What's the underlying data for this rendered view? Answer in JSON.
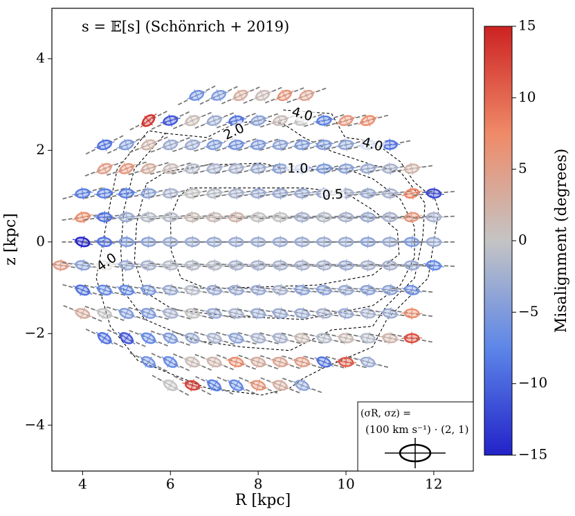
{
  "chart_data": {
    "type": "ellipse_field",
    "title": "s = 𝔼[s] (Schönrich + 2019)",
    "xlabel": "R [kpc]",
    "ylabel": "z [kpc]",
    "xlim": [
      3.3,
      12.9
    ],
    "ylim": [
      -5,
      5.1
    ],
    "xticks": [
      4,
      6,
      8,
      10,
      12
    ],
    "yticks": [
      {
        "value": -4,
        "label": "−4"
      },
      {
        "value": -2,
        "label": "−2"
      },
      0,
      2,
      4
    ],
    "rows": [
      {
        "z": 3.2,
        "R": [
          6.6,
          7.1,
          7.6,
          8.1,
          8.6,
          9.1
        ],
        "misalignment": [
          -6,
          -5,
          3,
          1,
          6,
          4
        ]
      },
      {
        "z": 2.65,
        "R": [
          5.5,
          6.0,
          6.5,
          7.0,
          7.5,
          8.0,
          8.5,
          9.0,
          9.5,
          10.0,
          10.5
        ],
        "misalignment": [
          14,
          -11,
          1,
          -3,
          -9,
          -4,
          1,
          0,
          -8,
          6,
          7
        ]
      },
      {
        "z": 2.12,
        "R": [
          4.5,
          5.0,
          5.5,
          6.0,
          6.5,
          7.0,
          7.5,
          8.0,
          8.5,
          9.0,
          9.5,
          10.0,
          10.5,
          11.0
        ],
        "misalignment": [
          -9,
          -5,
          2,
          -3,
          -3,
          -5,
          -6,
          -5,
          -4,
          -5,
          -5,
          -4,
          -5,
          -9
        ]
      },
      {
        "z": 1.6,
        "R": [
          4.5,
          5.0,
          5.5,
          6.0,
          6.5,
          7.0,
          7.5,
          8.0,
          8.5,
          9.0,
          9.5,
          10.0,
          10.5,
          11.0,
          11.5
        ],
        "misalignment": [
          5,
          6,
          3,
          1,
          -1,
          -2,
          -2,
          -3,
          -4,
          -6,
          -5,
          -4,
          -3,
          -2,
          2
        ]
      },
      {
        "z": 1.06,
        "R": [
          4.0,
          4.5,
          5.0,
          5.5,
          6.0,
          6.5,
          7.0,
          7.5,
          8.0,
          8.5,
          9.0,
          9.5,
          10.0,
          10.5,
          11.0,
          11.5,
          12.0
        ],
        "misalignment": [
          -8,
          -8,
          -8,
          -4,
          -2,
          0,
          -1,
          -2,
          -3,
          -3,
          -3,
          -3,
          -2,
          -3,
          -2,
          8,
          -12
        ]
      },
      {
        "z": 0.54,
        "R": [
          4.0,
          4.5,
          5.0,
          5.5,
          6.0,
          6.5,
          7.0,
          7.5,
          8.0,
          8.5,
          9.0,
          9.5,
          10.0,
          10.5,
          11.0,
          11.5,
          12.0
        ],
        "misalignment": [
          7,
          -9,
          -3,
          -1,
          -1,
          1,
          1,
          2,
          0,
          0,
          -2,
          -1,
          -2,
          -3,
          -2,
          6,
          -2
        ]
      },
      {
        "z": 0,
        "R": [
          4.0,
          4.5,
          5.0,
          5.5,
          6.0,
          6.5,
          7.0,
          7.5,
          8.0,
          8.5,
          9.0,
          9.5,
          10.0,
          10.5,
          11.0,
          11.5,
          12.0
        ],
        "misalignment": [
          -15,
          -9,
          -5,
          -4,
          -3,
          -3,
          -3,
          -3,
          -3,
          -3,
          -3,
          -3,
          -3,
          -4,
          -3,
          -5,
          -3
        ]
      },
      {
        "z": -0.51,
        "R": [
          3.5,
          4.0,
          4.5,
          5.0,
          5.5,
          6.0,
          6.5,
          7.0,
          7.5,
          8.0,
          8.5,
          9.0,
          9.5,
          10.0,
          10.5,
          11.0,
          11.5,
          12.0
        ],
        "misalignment": [
          5,
          -4,
          1,
          -3,
          -2,
          -1,
          -1,
          -1,
          -2,
          -2,
          -2,
          -2,
          -2,
          -3,
          -2,
          -2,
          -3,
          -7
        ]
      },
      {
        "z": -1.05,
        "R": [
          4.0,
          4.5,
          5.0,
          5.5,
          6.0,
          6.5,
          7.0,
          7.5,
          8.0,
          8.5,
          9.0,
          9.5,
          10.0,
          10.5,
          11.0,
          11.5
        ],
        "misalignment": [
          -9,
          -7,
          -7,
          -5,
          -3,
          -1,
          -3,
          -3,
          -3,
          -2,
          -4,
          -4,
          -3,
          -4,
          -4,
          -6
        ]
      },
      {
        "z": -1.56,
        "R": [
          4.0,
          4.5,
          5.0,
          5.5,
          6.0,
          6.5,
          7.0,
          7.5,
          8.0,
          8.5,
          9.0,
          9.5,
          10.0,
          10.5,
          11.0,
          11.5
        ],
        "misalignment": [
          3,
          0,
          -5,
          -5,
          -2,
          0,
          -3,
          -2,
          -3,
          -3,
          -3,
          -2,
          -3,
          -2,
          -3,
          7
        ]
      },
      {
        "z": -2.1,
        "R": [
          4.5,
          5.0,
          5.5,
          6.0,
          6.5,
          7.0,
          7.5,
          8.0,
          8.5,
          9.0,
          9.5,
          10.0,
          10.5,
          11.0,
          11.5
        ],
        "misalignment": [
          -9,
          -11,
          -7,
          -5,
          -3,
          -2,
          -4,
          -2,
          -2,
          1,
          -1,
          1,
          -1,
          2,
          12
        ]
      },
      {
        "z": -2.62,
        "R": [
          5.5,
          6.0,
          6.5,
          7.0,
          7.5,
          8.0,
          8.5,
          9.0,
          9.5,
          10.0,
          10.5
        ],
        "misalignment": [
          -6,
          -7,
          1,
          2,
          7,
          3,
          4,
          5,
          -9,
          11,
          -3
        ]
      },
      {
        "z": -3.13,
        "R": [
          6.0,
          6.5,
          7.0,
          7.5,
          8.0,
          8.5,
          9.0
        ],
        "misalignment": [
          0,
          13,
          -8,
          -7,
          6,
          3,
          -4
        ]
      }
    ],
    "contours": [
      {
        "level": 0.5,
        "label": "0.5",
        "points": [
          [
            6.44,
            1.18
          ],
          [
            9.04,
            1.18
          ],
          [
            9.98,
            1.08
          ],
          [
            10.61,
            0.7
          ],
          [
            11.17,
            0.25
          ],
          [
            11.21,
            -0.27
          ],
          [
            10.61,
            -0.72
          ],
          [
            9.35,
            -0.94
          ],
          [
            6.83,
            -1.02
          ],
          [
            6.24,
            -0.79
          ],
          [
            6.02,
            -0.19
          ],
          [
            6.0,
            0.55
          ],
          [
            6.2,
            1.0
          ],
          [
            6.44,
            1.18
          ]
        ]
      },
      {
        "level": 1,
        "label": "1.0",
        "points": [
          [
            5.45,
            1.27
          ],
          [
            5.89,
            1.53
          ],
          [
            6.83,
            1.68
          ],
          [
            8.09,
            1.72
          ],
          [
            8.72,
            1.57
          ],
          [
            9.98,
            1.6
          ],
          [
            10.61,
            1.38
          ],
          [
            11.24,
            0.93
          ],
          [
            11.56,
            0.33
          ],
          [
            11.56,
            -0.34
          ],
          [
            11.24,
            -0.94
          ],
          [
            10.61,
            -1.39
          ],
          [
            9.04,
            -1.69
          ],
          [
            7.31,
            -1.62
          ],
          [
            6.05,
            -1.47
          ],
          [
            5.42,
            -1.09
          ],
          [
            5.18,
            -0.42
          ],
          [
            5.23,
            0.4
          ],
          [
            5.45,
            1.27
          ]
        ]
      },
      {
        "level": 2,
        "label": "2.0",
        "points": [
          [
            5.89,
            2.37
          ],
          [
            6.83,
            2.28
          ],
          [
            7.46,
            2.58
          ],
          [
            8.09,
            2.66
          ],
          [
            8.57,
            2.58
          ],
          [
            9.04,
            2.28
          ],
          [
            9.67,
            1.98
          ],
          [
            10.61,
            1.68
          ],
          [
            11.24,
            1.53
          ],
          [
            11.8,
            0.85
          ],
          [
            11.75,
            0.1
          ],
          [
            11.56,
            -0.79
          ],
          [
            10.93,
            -1.39
          ],
          [
            10.61,
            -1.84
          ],
          [
            9.67,
            -1.92
          ],
          [
            9.04,
            -2.22
          ],
          [
            8.72,
            -2.37
          ],
          [
            7.61,
            -2.29
          ],
          [
            6.52,
            -2.14
          ],
          [
            5.42,
            -1.69
          ],
          [
            4.94,
            -1.09
          ],
          [
            4.87,
            -0.19
          ],
          [
            4.94,
            0.7
          ],
          [
            5.18,
            1.6
          ],
          [
            5.89,
            2.37
          ]
        ]
      },
      {
        "level": 4,
        "label": "4.0",
        "points": [
          [
            8.57,
            2.88
          ],
          [
            9.67,
            2.8
          ],
          [
            9.98,
            2.28
          ],
          [
            10.61,
            2.2
          ],
          [
            11.24,
            1.75
          ],
          [
            11.56,
            1.3
          ],
          [
            12.03,
            0.93
          ],
          [
            12.11,
            0.7
          ],
          [
            12.0,
            0.0
          ],
          [
            11.87,
            -0.79
          ],
          [
            11.24,
            -1.39
          ],
          [
            10.93,
            -1.69
          ],
          [
            10.61,
            -2.29
          ],
          [
            9.51,
            -2.74
          ],
          [
            9.04,
            -2.97
          ],
          [
            8.72,
            -3.19
          ],
          [
            8.09,
            -3.34
          ],
          [
            6.83,
            -3.19
          ],
          [
            5.26,
            -2.59
          ],
          [
            4.63,
            -1.84
          ],
          [
            4.31,
            -0.79
          ],
          [
            4.47,
            0.03
          ],
          [
            4.63,
            0.85
          ],
          [
            4.79,
            1.6
          ],
          [
            5.5,
            2.43
          ],
          [
            5.89,
            2.37
          ]
        ]
      }
    ],
    "colorbar": {
      "label": "Misalignment (degrees)",
      "lim": [
        -15,
        15
      ],
      "ticks": [
        {
          "value": -15,
          "label": "−15"
        },
        {
          "value": -10,
          "label": "−10"
        },
        {
          "value": -5,
          "label": "−5"
        },
        0,
        5,
        10,
        15
      ]
    },
    "legend_key": {
      "lines": [
        "(σR, σz) =",
        "(100 km s⁻¹) · (2, 1)"
      ]
    }
  }
}
